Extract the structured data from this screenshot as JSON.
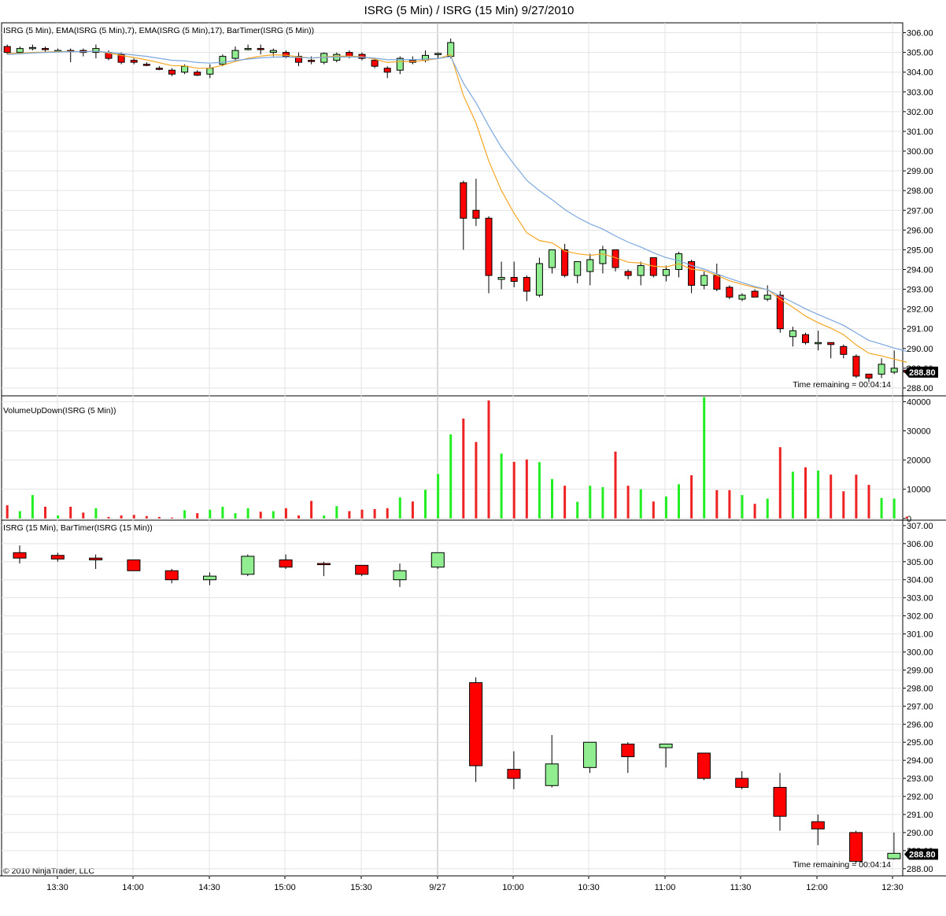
{
  "window_title": "ISRG (5 Min) / ISRG (15 Min)  9/27/2010",
  "copyright": "© 2010 NinjaTrader, LLC",
  "colors": {
    "up": "#90EE90",
    "down": "#FF0000",
    "ema7": "#F5A623",
    "ema17": "#7BA7DE",
    "vol_up": "#22EE22",
    "vol_down": "#EE2222",
    "grid": "#E3E3E3",
    "border": "#000000"
  },
  "x_tick_labels": [
    "13:30",
    "14:00",
    "14:30",
    "15:00",
    "15:30",
    "9/27",
    "10:00",
    "10:30",
    "11:00",
    "11:30",
    "12:00",
    "12:30"
  ],
  "chart_data": [
    {
      "type": "candlestick",
      "panel_label": "ISRG (5 Min), EMA(ISRG (5 Min),7), EMA(ISRG (5 Min),17), BarTimer(ISRG (5 Min))",
      "ylim": [
        287.6,
        306.5
      ],
      "y_ticks": [
        "288.00",
        "289.00",
        "290.00",
        "291.00",
        "292.00",
        "293.00",
        "294.00",
        "295.00",
        "296.00",
        "297.00",
        "298.00",
        "299.00",
        "300.00",
        "301.00",
        "302.00",
        "303.00",
        "304.00",
        "305.00",
        "306.00"
      ],
      "last_price": "288.80",
      "bar_timer": "Time remaining = 00:04:14",
      "ohlc": [
        [
          305.3,
          305.4,
          304.9,
          305.0
        ],
        [
          305.0,
          305.3,
          304.9,
          305.2
        ],
        [
          305.2,
          305.4,
          305.1,
          305.25
        ],
        [
          305.2,
          305.3,
          305.0,
          305.15
        ],
        [
          305.1,
          305.2,
          305.0,
          305.1
        ],
        [
          305.1,
          305.2,
          304.5,
          305.05
        ],
        [
          305.1,
          305.2,
          304.8,
          305.0
        ],
        [
          305.0,
          305.4,
          304.7,
          305.2
        ],
        [
          305.0,
          305.1,
          304.6,
          304.7
        ],
        [
          304.9,
          305.0,
          304.4,
          304.5
        ],
        [
          304.6,
          304.7,
          304.4,
          304.5
        ],
        [
          304.4,
          304.5,
          304.3,
          304.35
        ],
        [
          304.2,
          304.3,
          304.1,
          304.15
        ],
        [
          304.1,
          304.2,
          303.8,
          303.9
        ],
        [
          304.0,
          304.4,
          303.9,
          304.3
        ],
        [
          304.0,
          304.1,
          303.8,
          303.85
        ],
        [
          303.9,
          304.4,
          303.7,
          304.2
        ],
        [
          304.4,
          304.9,
          304.3,
          304.8
        ],
        [
          304.7,
          305.3,
          304.6,
          305.1
        ],
        [
          305.2,
          305.4,
          305.1,
          305.2
        ],
        [
          305.2,
          305.4,
          304.9,
          305.15
        ],
        [
          305.0,
          305.2,
          304.8,
          305.1
        ],
        [
          305.0,
          305.1,
          304.7,
          304.8
        ],
        [
          304.8,
          305.0,
          304.3,
          304.5
        ],
        [
          304.6,
          304.8,
          304.4,
          304.55
        ],
        [
          304.5,
          305.0,
          304.4,
          304.95
        ],
        [
          304.6,
          305.0,
          304.5,
          304.9
        ],
        [
          305.0,
          305.1,
          304.7,
          304.8
        ],
        [
          304.9,
          305.0,
          304.6,
          304.7
        ],
        [
          304.6,
          304.7,
          304.2,
          304.3
        ],
        [
          304.2,
          304.3,
          303.7,
          304.0
        ],
        [
          304.1,
          304.8,
          303.9,
          304.7
        ],
        [
          304.6,
          304.8,
          304.4,
          304.5
        ],
        [
          304.6,
          305.1,
          304.5,
          304.85
        ],
        [
          304.9,
          305.0,
          304.7,
          304.95
        ],
        [
          304.8,
          305.7,
          304.7,
          305.5
        ],
        [
          298.4,
          298.5,
          295.0,
          296.6
        ],
        [
          297.0,
          298.6,
          296.2,
          296.6
        ],
        [
          296.6,
          296.7,
          292.8,
          293.7
        ],
        [
          293.5,
          294.4,
          293.0,
          293.6
        ],
        [
          293.6,
          294.4,
          293.1,
          293.4
        ],
        [
          293.6,
          293.7,
          292.4,
          292.9
        ],
        [
          292.7,
          294.6,
          292.6,
          294.3
        ],
        [
          294.1,
          295.0,
          293.8,
          295.0
        ],
        [
          295.0,
          295.3,
          293.6,
          293.7
        ],
        [
          293.7,
          294.4,
          293.3,
          294.4
        ],
        [
          293.9,
          294.8,
          293.2,
          294.5
        ],
        [
          294.3,
          295.2,
          293.8,
          295.0
        ],
        [
          295.0,
          295.0,
          293.9,
          294.1
        ],
        [
          293.9,
          294.0,
          293.5,
          293.7
        ],
        [
          293.7,
          294.4,
          293.2,
          294.2
        ],
        [
          294.6,
          294.6,
          293.6,
          293.7
        ],
        [
          293.7,
          294.2,
          293.4,
          294.0
        ],
        [
          294.0,
          294.9,
          293.6,
          294.8
        ],
        [
          294.4,
          294.5,
          292.8,
          293.2
        ],
        [
          293.2,
          293.9,
          293.0,
          293.7
        ],
        [
          293.7,
          294.3,
          292.9,
          293.0
        ],
        [
          293.1,
          293.2,
          292.5,
          292.6
        ],
        [
          292.5,
          292.8,
          292.4,
          292.7
        ],
        [
          292.9,
          293.0,
          292.6,
          292.6
        ],
        [
          292.5,
          293.2,
          292.4,
          292.7
        ],
        [
          292.7,
          292.9,
          290.8,
          291.0
        ],
        [
          290.6,
          291.1,
          290.1,
          290.9
        ],
        [
          290.7,
          290.8,
          290.2,
          290.3
        ],
        [
          290.3,
          290.9,
          289.9,
          290.3
        ],
        [
          290.3,
          290.3,
          289.5,
          290.2
        ],
        [
          290.1,
          290.2,
          289.5,
          289.7
        ],
        [
          289.6,
          289.7,
          288.5,
          288.6
        ],
        [
          288.7,
          288.7,
          288.3,
          288.5
        ],
        [
          288.7,
          289.5,
          288.5,
          289.2
        ],
        [
          288.8,
          289.9,
          288.7,
          289.0
        ],
        [
          288.9,
          289.1,
          288.7,
          288.8
        ]
      ],
      "ema7": [
        304.95,
        304.96,
        305.0,
        305.02,
        305.04,
        305.05,
        305.04,
        305.06,
        304.97,
        304.85,
        304.74,
        304.62,
        304.48,
        304.33,
        304.32,
        304.2,
        304.2,
        304.35,
        304.54,
        304.7,
        304.81,
        304.88,
        304.86,
        304.77,
        304.71,
        304.77,
        304.81,
        304.81,
        304.78,
        304.66,
        304.49,
        304.54,
        304.53,
        304.6,
        304.69,
        304.89,
        302.82,
        301.42,
        299.5,
        298.0,
        296.85,
        295.86,
        295.47,
        295.35,
        294.94,
        294.8,
        294.72,
        294.79,
        294.6,
        294.37,
        294.33,
        294.17,
        294.13,
        294.29,
        294.02,
        293.94,
        293.71,
        293.43,
        293.25,
        293.09,
        292.99,
        292.49,
        292.09,
        291.64,
        291.3,
        291.03,
        290.7,
        290.18,
        289.76,
        289.62,
        289.46,
        289.3
      ],
      "ema17": [
        304.9,
        304.93,
        304.97,
        305.0,
        305.02,
        305.04,
        305.04,
        305.06,
        305.0,
        304.94,
        304.87,
        304.8,
        304.7,
        304.6,
        304.57,
        304.49,
        304.46,
        304.5,
        304.59,
        304.66,
        304.72,
        304.76,
        304.77,
        304.74,
        304.72,
        304.75,
        304.77,
        304.77,
        304.76,
        304.71,
        304.63,
        304.64,
        304.63,
        304.66,
        304.69,
        304.79,
        303.44,
        302.45,
        301.27,
        300.19,
        299.33,
        298.52,
        297.99,
        297.54,
        297.04,
        296.64,
        296.31,
        296.05,
        295.7,
        295.39,
        295.14,
        294.85,
        294.6,
        294.45,
        294.2,
        294.02,
        293.78,
        293.55,
        293.34,
        293.14,
        292.98,
        292.65,
        292.34,
        292.01,
        291.72,
        291.45,
        291.17,
        290.79,
        290.41,
        290.22,
        290.02,
        289.85
      ]
    },
    {
      "type": "bar",
      "panel_label": "VolumeUpDown(ISRG (5 Min))",
      "ylim": [
        -600,
        42000
      ],
      "y_ticks": [
        "0",
        "10000",
        "20000",
        "30000",
        "40000"
      ],
      "values": [
        4500,
        2500,
        8000,
        4000,
        1000,
        4000,
        2000,
        3500,
        500,
        1000,
        1200,
        800,
        500,
        300,
        2800,
        1800,
        3000,
        4000,
        1800,
        3500,
        2300,
        2500,
        3500,
        1000,
        6000,
        1000,
        4200,
        2500,
        3000,
        3200,
        3500,
        7200,
        5800,
        9800,
        15200,
        28800,
        34200,
        26200,
        40400,
        22200,
        19400,
        20200,
        19300,
        13500,
        11200,
        5700,
        11200,
        10700,
        22900,
        11200,
        10000,
        5800,
        7500,
        11700,
        14800,
        41600,
        9700,
        9700,
        8000,
        5000,
        6800,
        24400,
        16000,
        17500,
        16400,
        15000,
        9300,
        15000,
        11500,
        7000,
        6800,
        600
      ],
      "up_down": [
        1,
        1,
        1,
        1,
        1,
        1,
        1,
        1,
        1,
        1,
        1,
        1,
        1,
        1,
        1,
        1,
        1,
        1,
        1,
        1,
        1,
        1,
        1,
        1,
        1,
        1,
        1,
        1,
        1,
        1,
        1,
        1,
        1,
        1,
        1,
        1,
        1,
        1,
        1,
        1,
        1,
        1,
        1,
        1,
        1,
        1,
        1,
        1,
        1,
        1,
        1,
        1,
        1,
        1,
        1,
        1,
        1,
        1,
        1,
        1,
        1,
        1,
        1,
        1,
        1,
        1,
        1,
        1,
        1,
        1,
        1,
        1
      ]
    },
    {
      "type": "candlestick",
      "panel_label": "ISRG (15 Min), BarTimer(ISRG (15 Min))",
      "ylim": [
        287.6,
        307.3
      ],
      "y_ticks": [
        "288.00",
        "289.00",
        "290.00",
        "291.00",
        "292.00",
        "293.00",
        "294.00",
        "295.00",
        "296.00",
        "297.00",
        "298.00",
        "299.00",
        "300.00",
        "301.00",
        "302.00",
        "303.00",
        "304.00",
        "305.00",
        "306.00",
        "307.00"
      ],
      "last_price": "288.80",
      "bar_timer": "Time remaining = 00:04:14",
      "ohlc": [
        [
          305.5,
          305.9,
          304.9,
          305.2
        ],
        [
          305.35,
          305.5,
          305.0,
          305.15
        ],
        [
          305.2,
          305.4,
          304.6,
          305.1
        ],
        [
          305.1,
          305.1,
          304.5,
          304.5
        ],
        [
          304.5,
          304.6,
          303.8,
          304.0
        ],
        [
          304.0,
          304.4,
          303.7,
          304.2
        ],
        [
          304.3,
          305.4,
          304.2,
          305.3
        ],
        [
          305.1,
          305.4,
          304.6,
          304.7
        ],
        [
          304.9,
          305.0,
          304.2,
          304.85
        ],
        [
          304.8,
          304.8,
          304.2,
          304.3
        ],
        [
          304.0,
          304.9,
          303.6,
          304.5
        ],
        [
          304.7,
          305.5,
          304.6,
          305.5
        ],
        [
          298.3,
          298.6,
          292.8,
          293.7
        ],
        [
          293.5,
          294.5,
          292.4,
          293.0
        ],
        [
          292.6,
          295.4,
          292.5,
          293.8
        ],
        [
          293.6,
          295.0,
          293.3,
          295.0
        ],
        [
          294.9,
          295.0,
          293.3,
          294.2
        ],
        [
          294.7,
          294.9,
          293.6,
          294.9
        ],
        [
          294.4,
          294.4,
          292.9,
          293.0
        ],
        [
          293.0,
          293.4,
          292.4,
          292.5
        ],
        [
          292.5,
          293.3,
          290.1,
          290.9
        ],
        [
          290.6,
          291.0,
          289.3,
          290.2
        ],
        [
          290.0,
          290.1,
          288.3,
          288.4
        ],
        [
          288.55,
          290.0,
          288.5,
          288.85
        ]
      ]
    }
  ]
}
